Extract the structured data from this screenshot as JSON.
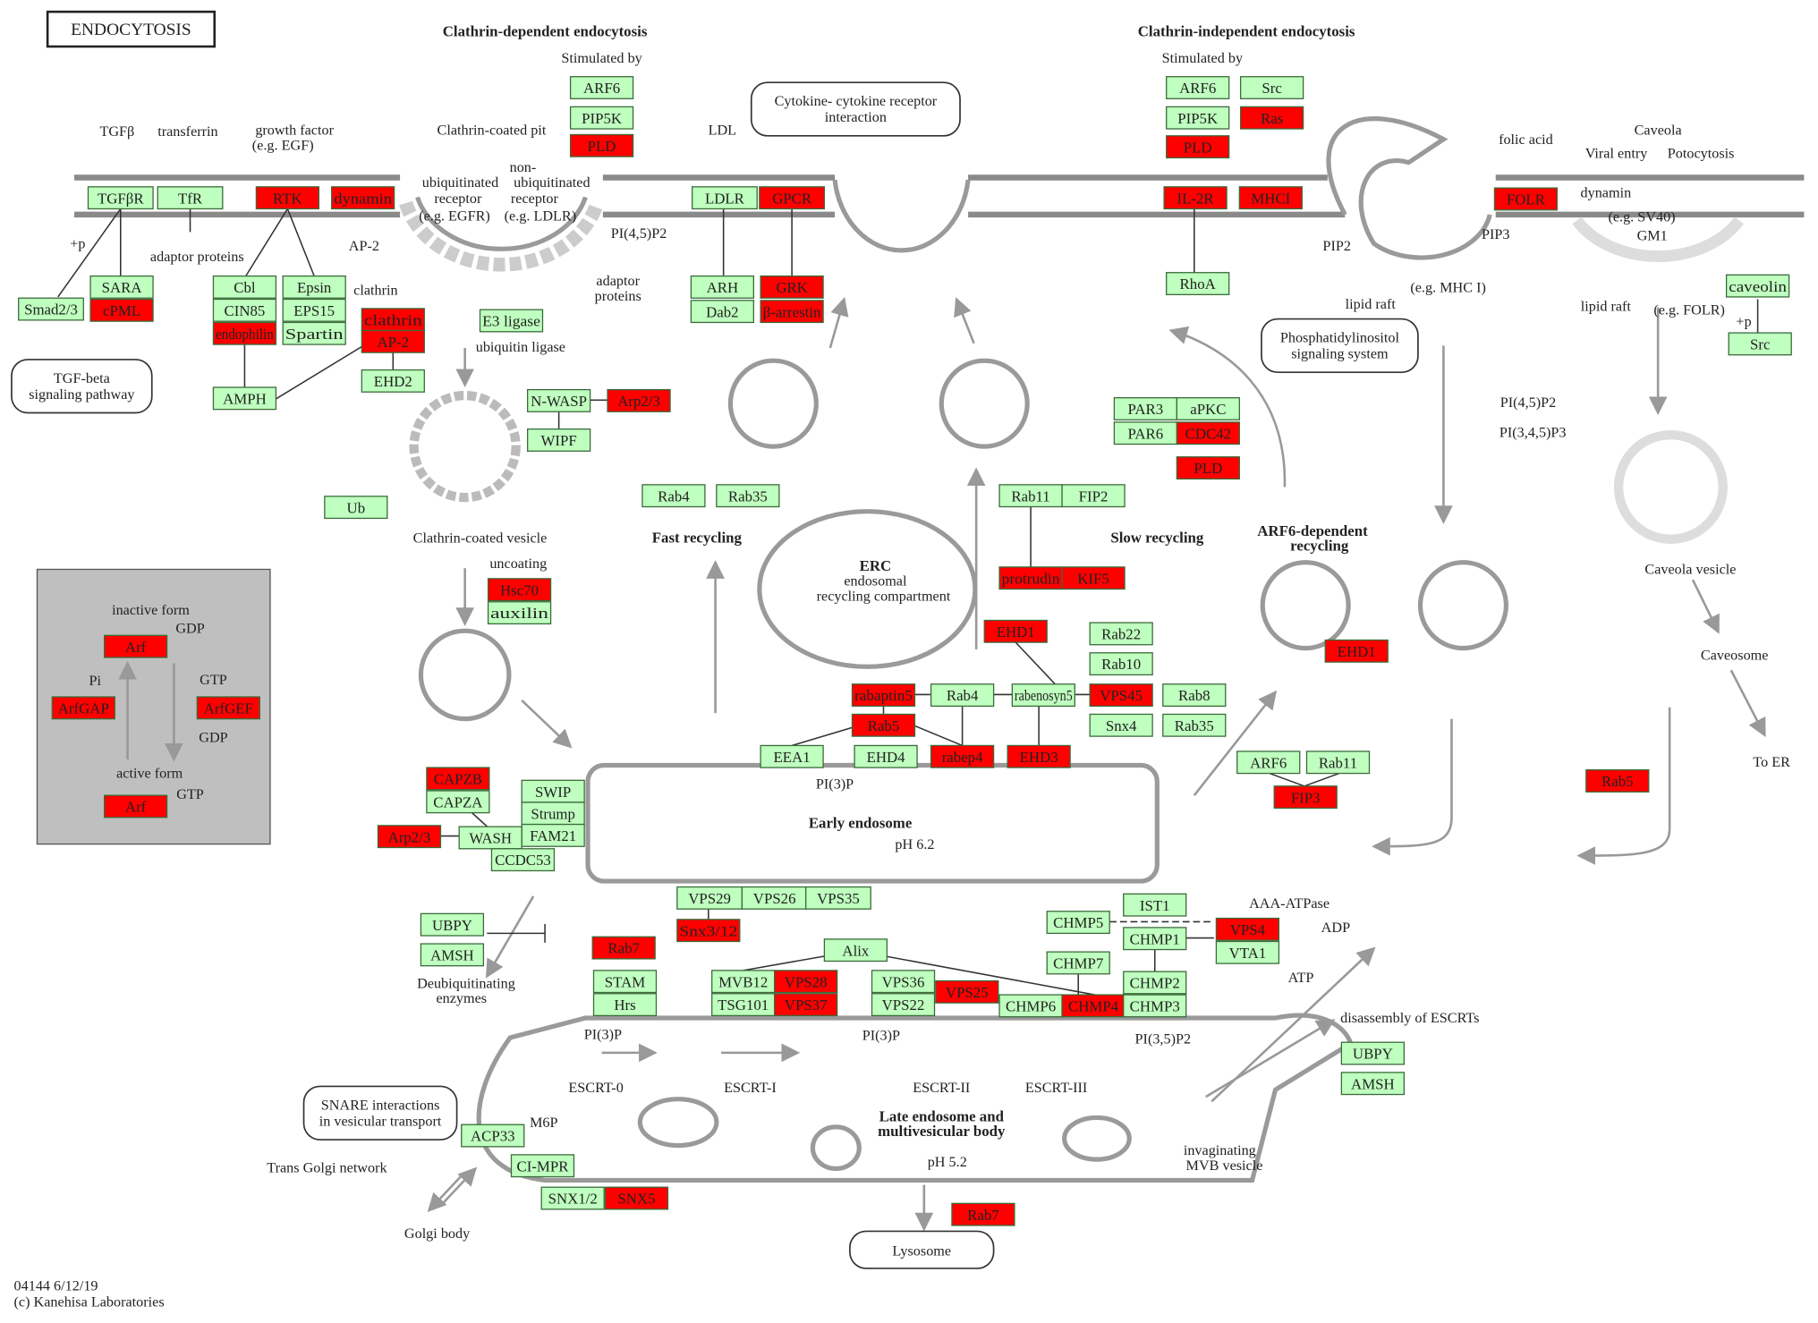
{
  "title": "ENDOCYTOSIS",
  "colors": {
    "red": "#ff0000",
    "green": "#bfffbf",
    "panel": "#bfbfbf"
  },
  "gene_nodes": [
    {
      "label": "ARF6",
      "state": "green"
    },
    {
      "label": "PIP5K",
      "state": "green"
    },
    {
      "label": "PLD",
      "state": "red"
    },
    {
      "label": "TGFβR",
      "state": "green"
    },
    {
      "label": "TfR",
      "state": "green"
    },
    {
      "label": "RTK",
      "state": "red"
    },
    {
      "label": "dynamin",
      "state": "red"
    },
    {
      "label": "LDLR",
      "state": "green"
    },
    {
      "label": "GPCR",
      "state": "red"
    },
    {
      "label": "SARA",
      "state": "green"
    },
    {
      "label": "cPML",
      "state": "red"
    },
    {
      "label": "Smad2/3",
      "state": "green"
    },
    {
      "label": "Cbl",
      "state": "green"
    },
    {
      "label": "CIN85",
      "state": "green"
    },
    {
      "label": "endophilin",
      "state": "red"
    },
    {
      "label": "Epsin",
      "state": "green"
    },
    {
      "label": "EPS15",
      "state": "green"
    },
    {
      "label": "Spartin",
      "state": "green"
    },
    {
      "label": "clathrin",
      "state": "red"
    },
    {
      "label": "AP-2",
      "state": "red"
    },
    {
      "label": "EHD2",
      "state": "green"
    },
    {
      "label": "AMPH",
      "state": "green"
    },
    {
      "label": "E3 ligase",
      "state": "green"
    },
    {
      "label": "ARH",
      "state": "green"
    },
    {
      "label": "Dab2",
      "state": "green"
    },
    {
      "label": "GRK",
      "state": "red"
    },
    {
      "label": "β-arrestin",
      "state": "red"
    },
    {
      "label": "N-WASP",
      "state": "green"
    },
    {
      "label": "Arp2/3",
      "state": "red"
    },
    {
      "label": "WIPF",
      "state": "green"
    },
    {
      "label": "Ub",
      "state": "green"
    },
    {
      "label": "Hsc70",
      "state": "red"
    },
    {
      "label": "auxilin",
      "state": "green"
    },
    {
      "label": "Rab4",
      "state": "green"
    },
    {
      "label": "Rab35",
      "state": "green"
    },
    {
      "label": "Rab11",
      "state": "green"
    },
    {
      "label": "FIP2",
      "state": "green"
    },
    {
      "label": "protrudin",
      "state": "red"
    },
    {
      "label": "KIF5",
      "state": "red"
    },
    {
      "label": "EHD1",
      "state": "red"
    },
    {
      "label": "Rab22",
      "state": "green"
    },
    {
      "label": "Rab10",
      "state": "green"
    },
    {
      "label": "rabaptin5",
      "state": "red"
    },
    {
      "label": "Rab4",
      "state": "green"
    },
    {
      "label": "rabenosyn5",
      "state": "green"
    },
    {
      "label": "VPS45",
      "state": "red"
    },
    {
      "label": "Rab8",
      "state": "green"
    },
    {
      "label": "Snx4",
      "state": "green"
    },
    {
      "label": "Rab35",
      "state": "green"
    },
    {
      "label": "Rab5",
      "state": "red"
    },
    {
      "label": "EEA1",
      "state": "green"
    },
    {
      "label": "EHD4",
      "state": "green"
    },
    {
      "label": "rabep4",
      "state": "red"
    },
    {
      "label": "EHD3",
      "state": "red"
    },
    {
      "label": "PAR3",
      "state": "green"
    },
    {
      "label": "aPKC",
      "state": "green"
    },
    {
      "label": "PAR6",
      "state": "green"
    },
    {
      "label": "CDC42",
      "state": "red"
    },
    {
      "label": "PLD",
      "state": "red"
    },
    {
      "label": "ARF6",
      "state": "green"
    },
    {
      "label": "Src",
      "state": "green"
    },
    {
      "label": "PIP5K",
      "state": "green"
    },
    {
      "label": "Ras",
      "state": "red"
    },
    {
      "label": "PLD",
      "state": "red"
    },
    {
      "label": "IL-2R",
      "state": "red"
    },
    {
      "label": "MHCI",
      "state": "red"
    },
    {
      "label": "RhoA",
      "state": "green"
    },
    {
      "label": "FOLR",
      "state": "red"
    },
    {
      "label": "caveolin",
      "state": "green"
    },
    {
      "label": "Src",
      "state": "green"
    },
    {
      "label": "EHD1",
      "state": "red"
    },
    {
      "label": "ARF6",
      "state": "green"
    },
    {
      "label": "Rab11",
      "state": "green"
    },
    {
      "label": "FIP3",
      "state": "red"
    },
    {
      "label": "Rab5",
      "state": "red"
    },
    {
      "label": "CAPZB",
      "state": "red"
    },
    {
      "label": "CAPZA",
      "state": "green"
    },
    {
      "label": "SWIP",
      "state": "green"
    },
    {
      "label": "Strump",
      "state": "green"
    },
    {
      "label": "FAM21",
      "state": "green"
    },
    {
      "label": "WASH",
      "state": "green"
    },
    {
      "label": "Arp2/3",
      "state": "red"
    },
    {
      "label": "CCDC53",
      "state": "green"
    },
    {
      "label": "VPS29",
      "state": "green"
    },
    {
      "label": "VPS26",
      "state": "green"
    },
    {
      "label": "VPS35",
      "state": "green"
    },
    {
      "label": "Snx3/12",
      "state": "red"
    },
    {
      "label": "UBPY",
      "state": "green"
    },
    {
      "label": "AMSH",
      "state": "green"
    },
    {
      "label": "Rab7",
      "state": "red"
    },
    {
      "label": "STAM",
      "state": "green"
    },
    {
      "label": "Hrs",
      "state": "green"
    },
    {
      "label": "Alix",
      "state": "green"
    },
    {
      "label": "MVB12",
      "state": "green"
    },
    {
      "label": "VPS28",
      "state": "red"
    },
    {
      "label": "TSG101",
      "state": "green"
    },
    {
      "label": "VPS37",
      "state": "red"
    },
    {
      "label": "VPS36",
      "state": "green"
    },
    {
      "label": "VPS22",
      "state": "green"
    },
    {
      "label": "VPS25",
      "state": "red"
    },
    {
      "label": "CHMP6",
      "state": "green"
    },
    {
      "label": "CHMP4",
      "state": "red"
    },
    {
      "label": "CHMP7",
      "state": "green"
    },
    {
      "label": "CHMP5",
      "state": "green"
    },
    {
      "label": "IST1",
      "state": "green"
    },
    {
      "label": "CHMP1",
      "state": "green"
    },
    {
      "label": "VPS4",
      "state": "red"
    },
    {
      "label": "VTA1",
      "state": "green"
    },
    {
      "label": "CHMP2",
      "state": "green"
    },
    {
      "label": "CHMP3",
      "state": "green"
    },
    {
      "label": "UBPY",
      "state": "green"
    },
    {
      "label": "AMSH",
      "state": "green"
    },
    {
      "label": "ACP33",
      "state": "green"
    },
    {
      "label": "CI-MPR",
      "state": "green"
    },
    {
      "label": "SNX1/2",
      "state": "green"
    },
    {
      "label": "SNX5",
      "state": "red"
    },
    {
      "label": "Rab7",
      "state": "red"
    },
    {
      "label": "Arf",
      "state": "red"
    },
    {
      "label": "ArfGAP",
      "state": "red"
    },
    {
      "label": "ArfGEF",
      "state": "red"
    },
    {
      "label": "Arf",
      "state": "red"
    }
  ],
  "pathway_links": [
    {
      "line1": "Cytokine- cytokine receptor",
      "line2": "interaction"
    },
    {
      "line1": "TGF-beta",
      "line2": "signaling pathway"
    },
    {
      "line1": "Phosphatidylinositol",
      "line2": "signaling system"
    },
    {
      "line1": "SNARE interactions",
      "line2": "in vesicular transport"
    },
    {
      "line1": "Lysosome",
      "line2": ""
    }
  ],
  "labels": [
    "Clathrin-dependent endocytosis",
    "Stimulated by",
    "Clathrin-independent endocytosis",
    "Stimulated by",
    "TGFβ",
    "transferrin",
    "growth factor",
    "(e.g. EGF)",
    "Clathrin-coated pit",
    "LDL",
    "ubiquitinated",
    "receptor",
    "(e.g. EGFR)",
    "non-",
    "ubiquitinated",
    "receptor",
    "(e.g. LDLR)",
    "PI(4,5)P2",
    "AP-2",
    "adaptor proteins",
    "+p",
    "clathrin",
    "adaptor",
    "proteins",
    "ubiquitin ligase",
    "Clathrin-coated vesicle",
    "uncoating",
    "Fast recycling",
    "Slow recycling",
    "ERC",
    "endosomal",
    "recycling compartment",
    "ARF6-dependent",
    "recycling",
    "folic acid",
    "Caveola",
    "Viral entry",
    "Potocytosis",
    "dynamin",
    "(e.g. SV40)",
    "GM1",
    "PIP2",
    "PIP3",
    "lipid raft",
    "(e.g. MHC I)",
    "lipid raft",
    "(e.g. FOLR)",
    "+p",
    "PI(4,5)P2",
    "PI(3,4,5)P3",
    "Caveola vesicle",
    "Caveosome",
    "To ER",
    "inactive form",
    "GDP",
    "Pi",
    "GTP",
    "GDP",
    "active form",
    "GTP",
    "PI(3)P",
    "Early endosome",
    "pH 6.2",
    "AAA-ATPase",
    "ADP",
    "ATP",
    "disassembly of ESCRTs",
    "Deubiquitinating",
    "enzymes",
    "PI(3)P",
    "PI(3)P",
    "PI(3,5)P2",
    "ESCRT-0",
    "ESCRT-I",
    "ESCRT-II",
    "ESCRT-III",
    "Late endosome and",
    "multivesicular body",
    "pH 5.2",
    "M6P",
    "Trans Golgi network",
    "Golgi body",
    "invaginating",
    "MVB vesicle",
    "04144 6/12/19",
    "(c) Kanehisa Laboratories"
  ]
}
